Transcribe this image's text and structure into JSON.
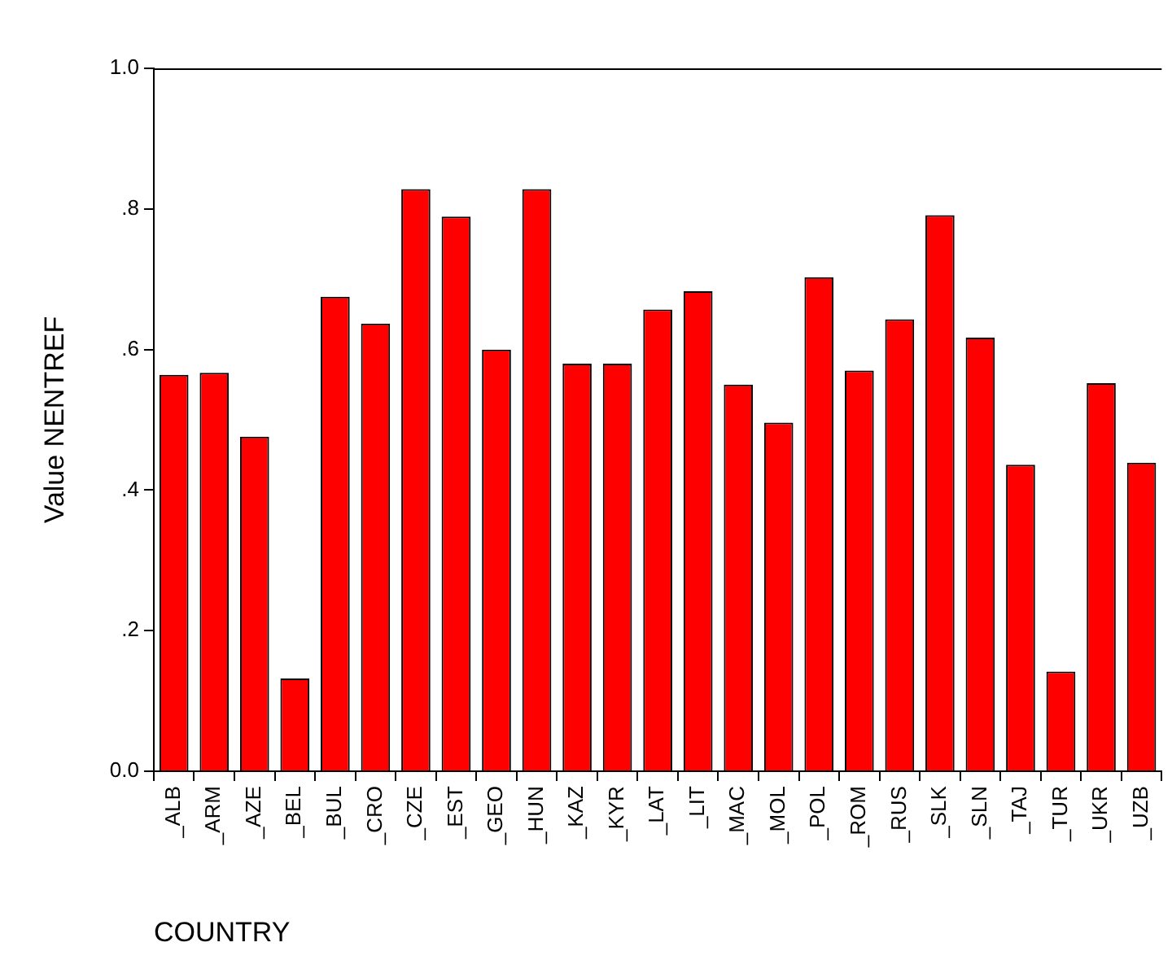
{
  "chart_data": {
    "type": "bar",
    "xlabel": "COUNTRY",
    "ylabel": "Value NENTREF",
    "categories": [
      "_ALB",
      "_ARM",
      "_AZE",
      "_BEL",
      "_BUL",
      "_CRO",
      "_CZE",
      "_EST",
      "_GEO",
      "_HUN",
      "_KAZ",
      "_KYR",
      "_LAT",
      "_LIT",
      "_MAC",
      "_MOL",
      "_POL",
      "_ROM",
      "_RUS",
      "_SLK",
      "_SLN",
      "_TAJ",
      "_TUR",
      "_UKR",
      "_UZB"
    ],
    "values": [
      0.564,
      0.567,
      0.476,
      0.132,
      0.675,
      0.637,
      0.828,
      0.789,
      0.6,
      0.828,
      0.58,
      0.58,
      0.657,
      0.683,
      0.55,
      0.496,
      0.703,
      0.57,
      0.643,
      0.791,
      0.617,
      0.436,
      0.142,
      0.552,
      0.439
    ],
    "color": "#ff0000",
    "ylim": [
      0,
      1
    ],
    "yticks": [
      {
        "value": 0,
        "label": "0.0"
      },
      {
        "value": 0.2,
        "label": ".2"
      },
      {
        "value": 0.4,
        "label": ".4"
      },
      {
        "value": 0.6,
        "label": ".6"
      },
      {
        "value": 0.8,
        "label": ".8"
      },
      {
        "value": 1,
        "label": "1.0"
      }
    ],
    "grid": false,
    "legend": false
  }
}
